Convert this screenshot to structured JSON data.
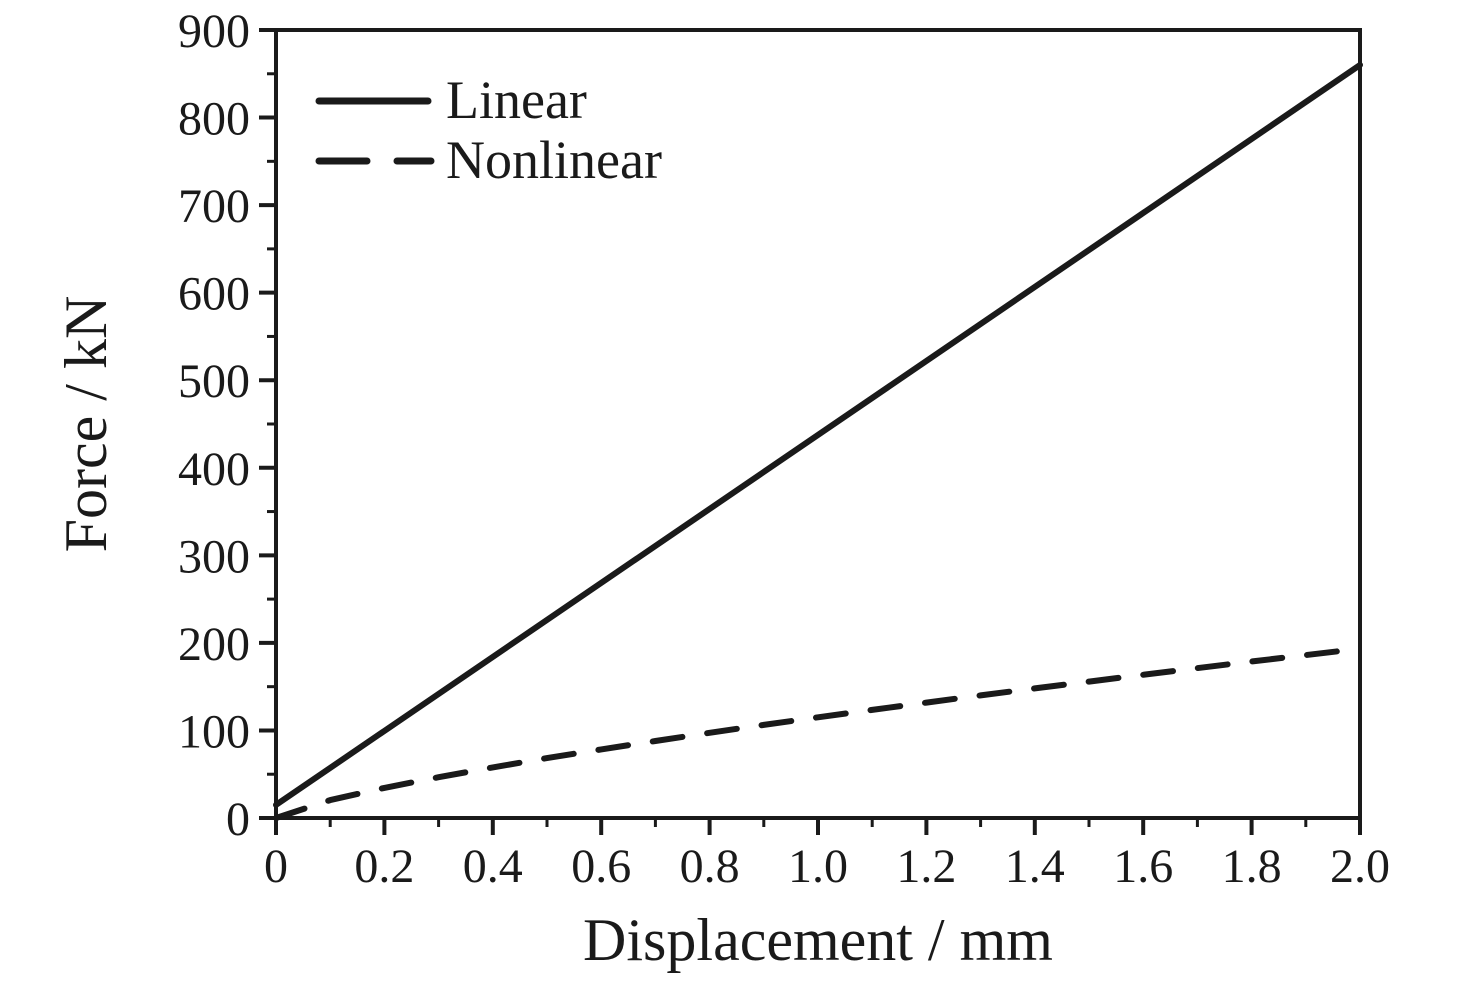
{
  "chart_data": {
    "type": "line",
    "title": "",
    "xlabel": "Displacement / mm",
    "ylabel": "Force / kN",
    "xlim": [
      0,
      2.0
    ],
    "ylim": [
      0,
      900
    ],
    "grid": false,
    "legend_position": "top-left-inside",
    "line_color": "#1a1a1a",
    "x_ticks": {
      "values": [
        0,
        0.2,
        0.4,
        0.6,
        0.8,
        1.0,
        1.2,
        1.4,
        1.6,
        1.8,
        2.0
      ],
      "labels": [
        "0",
        "0.2",
        "0.4",
        "0.6",
        "0.8",
        "1.0",
        "1.2",
        "1.4",
        "1.6",
        "1.8",
        "2.0"
      ],
      "minor_step": 0.1
    },
    "y_ticks": {
      "values": [
        0,
        100,
        200,
        300,
        400,
        500,
        600,
        700,
        800,
        900
      ],
      "labels": [
        "0",
        "100",
        "200",
        "300",
        "400",
        "500",
        "600",
        "700",
        "800",
        "900"
      ],
      "minor_step": 50
    },
    "series": [
      {
        "name": "Linear",
        "line_style": "solid",
        "x": [
          0,
          2.0
        ],
        "y": [
          15,
          860
        ]
      },
      {
        "name": "Nonlinear",
        "line_style": "dashed",
        "x": [
          0,
          0.1,
          0.2,
          0.3,
          0.4,
          0.5,
          0.6,
          0.7,
          0.8,
          0.9,
          1.0,
          1.1,
          1.2,
          1.3,
          1.4,
          1.5,
          1.6,
          1.7,
          1.8,
          1.9,
          2.0
        ],
        "y": [
          0,
          20.4,
          34.4,
          46.6,
          57.8,
          68.4,
          78.4,
          88.0,
          97.3,
          106.3,
          115.0,
          123.5,
          131.8,
          140.0,
          148.0,
          155.8,
          163.6,
          171.2,
          178.7,
          186.1,
          193.4
        ]
      }
    ]
  }
}
